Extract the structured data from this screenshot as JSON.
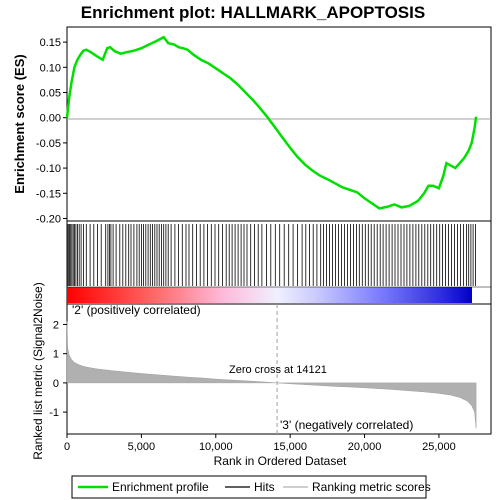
{
  "title": "Enrichment plot: HALLMARK_APOPTOSIS",
  "colors": {
    "profile": "#00e000",
    "hit": "#000000",
    "metric_fill": "#b0b0b0",
    "positive_label": "#e00000",
    "negative_label": "#1c1cc8",
    "zero_line": "#a0a0a0",
    "frame": "#000000"
  },
  "chart_data": [
    {
      "type": "line",
      "name": "enrichment-profile",
      "ylabel": "Enrichment score (ES)",
      "xlim": [
        0,
        28500
      ],
      "ylim": [
        -0.205,
        0.18
      ],
      "yticks": [
        0.15,
        0.1,
        0.05,
        0.0,
        -0.05,
        -0.1,
        -0.15,
        -0.2
      ],
      "ytick_labels": [
        "0.15",
        "0.10",
        "0.05",
        "0.00",
        "-0.05",
        "-0.10",
        "-0.15",
        "-0.20"
      ],
      "series": [
        {
          "name": "Enrichment profile",
          "x": [
            0,
            150,
            300,
            500,
            700,
            900,
            1100,
            1300,
            1600,
            2000,
            2400,
            2700,
            2900,
            3200,
            3600,
            4000,
            4500,
            5000,
            5500,
            6000,
            6500,
            6800,
            7200,
            7500,
            7800,
            8100,
            8500,
            9000,
            9500,
            10000,
            10500,
            11000,
            11500,
            12000,
            12500,
            13000,
            13500,
            14000,
            14500,
            15000,
            15500,
            16000,
            16500,
            17000,
            17500,
            18000,
            18500,
            19000,
            19500,
            20000,
            20500,
            21000,
            21500,
            22000,
            22500,
            23000,
            23300,
            23600,
            24000,
            24300,
            24600,
            25000,
            25300,
            25500,
            25800,
            26100,
            26400,
            26700,
            27000,
            27200,
            27400,
            27500
          ],
          "y": [
            0.0,
            0.04,
            0.07,
            0.1,
            0.115,
            0.125,
            0.133,
            0.135,
            0.13,
            0.122,
            0.115,
            0.138,
            0.14,
            0.132,
            0.127,
            0.13,
            0.133,
            0.138,
            0.145,
            0.152,
            0.16,
            0.148,
            0.145,
            0.14,
            0.138,
            0.135,
            0.125,
            0.115,
            0.108,
            0.098,
            0.088,
            0.078,
            0.065,
            0.05,
            0.035,
            0.018,
            0.0,
            -0.02,
            -0.04,
            -0.06,
            -0.078,
            -0.093,
            -0.105,
            -0.115,
            -0.122,
            -0.13,
            -0.138,
            -0.143,
            -0.148,
            -0.16,
            -0.17,
            -0.18,
            -0.177,
            -0.172,
            -0.178,
            -0.175,
            -0.17,
            -0.165,
            -0.15,
            -0.135,
            -0.135,
            -0.14,
            -0.115,
            -0.09,
            -0.095,
            -0.1,
            -0.09,
            -0.08,
            -0.065,
            -0.05,
            -0.02,
            0.002
          ]
        }
      ]
    },
    {
      "type": "scatter",
      "name": "hits",
      "xlim": [
        0,
        28500
      ],
      "x": [
        30,
        90,
        160,
        250,
        330,
        420,
        510,
        600,
        700,
        820,
        950,
        1100,
        1300,
        1550,
        1800,
        2050,
        2300,
        2600,
        2750,
        2850,
        2950,
        3100,
        3300,
        3550,
        3750,
        3950,
        4150,
        4300,
        4500,
        4700,
        4850,
        5000,
        5150,
        5300,
        5450,
        5600,
        5750,
        5900,
        6050,
        6200,
        6350,
        6500,
        6650,
        6800,
        7000,
        7250,
        7500,
        7750,
        8000,
        8200,
        8450,
        8700,
        8950,
        9200,
        9450,
        9700,
        9950,
        10200,
        10450,
        10700,
        10900,
        11100,
        11300,
        11500,
        11700,
        11900,
        12100,
        12350,
        12600,
        12850,
        13100,
        13400,
        13700,
        14000,
        14300,
        14600,
        14900,
        15200,
        15500,
        15800,
        16050,
        16300,
        16550,
        16800,
        17050,
        17250,
        17450,
        17650,
        17850,
        18050,
        18250,
        18450,
        18650,
        18850,
        19050,
        19250,
        19450,
        19650,
        19850,
        20050,
        20250,
        20450,
        20650,
        20850,
        21050,
        21250,
        21450,
        21650,
        21850,
        22050,
        22250,
        22450,
        22650,
        22850,
        23050,
        23250,
        23450,
        23650,
        23850,
        24050,
        24250,
        24450,
        24650,
        24850,
        25050,
        25250,
        25450,
        25650,
        25850,
        26050,
        26250,
        26450,
        26650,
        26850,
        27000,
        27150,
        27300,
        27450
      ]
    },
    {
      "type": "area",
      "name": "ranked-metric",
      "xlabel": "Rank in Ordered Dataset",
      "ylabel": "Ranked list metric (Signal2Noise)",
      "xlim": [
        0,
        28500
      ],
      "ylim": [
        -1.75,
        2.7
      ],
      "xticks": [
        0,
        5000,
        10000,
        15000,
        20000,
        25000
      ],
      "xtick_labels": [
        "0",
        "5,000",
        "10,000",
        "15,000",
        "20,000",
        "25,000"
      ],
      "yticks": [
        2,
        1,
        0,
        -1
      ],
      "ytick_labels": [
        "2",
        "1",
        "0",
        "-1"
      ],
      "x": [
        0,
        50,
        150,
        300,
        500,
        800,
        1200,
        2000,
        3000,
        4000,
        5000,
        6000,
        7000,
        8000,
        9000,
        10000,
        11000,
        12000,
        13000,
        14121,
        15000,
        16000,
        17000,
        18000,
        19000,
        20000,
        21000,
        22000,
        23000,
        24000,
        25000,
        25800,
        26400,
        26900,
        27200,
        27400,
        27500
      ],
      "y": [
        2.1,
        1.2,
        0.95,
        0.8,
        0.7,
        0.62,
        0.55,
        0.48,
        0.42,
        0.37,
        0.32,
        0.28,
        0.24,
        0.2,
        0.17,
        0.13,
        0.1,
        0.07,
        0.04,
        0.0,
        -0.03,
        -0.06,
        -0.09,
        -0.12,
        -0.14,
        -0.17,
        -0.2,
        -0.23,
        -0.27,
        -0.31,
        -0.36,
        -0.42,
        -0.5,
        -0.62,
        -0.78,
        -1.0,
        -1.55
      ]
    }
  ],
  "annotations": {
    "zero_cross": "Zero cross at 14121",
    "zero_cross_rank": 14121,
    "positive": "'2' (positively correlated)",
    "negative": "'3' (negatively correlated)"
  },
  "legend": {
    "placement": "bottom",
    "items": [
      {
        "label": "Enrichment profile",
        "kind": "line",
        "color": "#00e000"
      },
      {
        "label": "Hits",
        "kind": "line",
        "color": "#000000"
      },
      {
        "label": "Ranking metric scores",
        "kind": "line",
        "color": "#b0b0b0"
      }
    ]
  }
}
